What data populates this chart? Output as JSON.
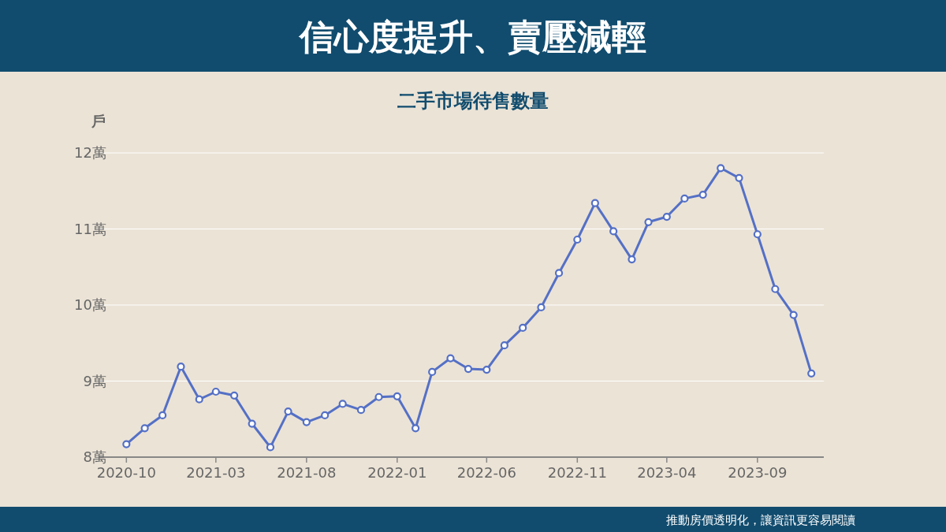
{
  "chart_data": {
    "type": "line",
    "title": "信心度提升、賣壓減輕",
    "subtitle": "二手市場待售數量",
    "ylabel": "戶",
    "annotations": [
      "推動房價透明化，讓資訊更容易閱讀"
    ],
    "x": [
      "2020-10",
      "2020-11",
      "2020-12",
      "2021-01",
      "2021-02",
      "2021-03",
      "2021-04",
      "2021-05",
      "2021-06",
      "2021-07",
      "2021-08",
      "2021-09",
      "2021-10",
      "2021-11",
      "2021-12",
      "2022-01",
      "2022-02",
      "2022-03",
      "2022-04",
      "2022-05",
      "2022-06",
      "2022-07",
      "2022-08",
      "2022-09",
      "2022-10",
      "2022-11",
      "2022-12",
      "2023-01",
      "2023-02",
      "2023-03",
      "2023-04",
      "2023-05",
      "2023-06",
      "2023-07",
      "2023-08",
      "2023-09",
      "2023-10",
      "2023-11",
      "2023-12"
    ],
    "series": [
      {
        "color": "#5470c6",
        "values": [
          8.17,
          8.38,
          8.55,
          9.19,
          8.76,
          8.86,
          8.81,
          8.44,
          8.13,
          8.6,
          8.46,
          8.55,
          8.7,
          8.62,
          8.79,
          8.8,
          8.38,
          9.12,
          9.3,
          9.16,
          9.15,
          9.47,
          9.7,
          9.97,
          10.42,
          10.86,
          11.34,
          10.97,
          10.6,
          11.09,
          11.16,
          11.4,
          11.45,
          11.8,
          11.67,
          10.93,
          10.21,
          9.87,
          9.1
        ]
      }
    ],
    "xlim": [
      "2020-08-15",
      "2023-12-22"
    ],
    "xticks": [
      {
        "value": "2020-10",
        "label": "2020-10"
      },
      {
        "value": "2021-03",
        "label": "2021-03"
      },
      {
        "value": "2021-08",
        "label": "2021-08"
      },
      {
        "value": "2022-01",
        "label": "2022-01"
      },
      {
        "value": "2022-06",
        "label": "2022-06"
      },
      {
        "value": "2022-11",
        "label": "2022-11"
      },
      {
        "value": "2023-04",
        "label": "2023-04"
      },
      {
        "value": "2023-09",
        "label": "2023-09"
      }
    ],
    "ylim": [
      8,
      12
    ],
    "yticks": [
      {
        "value": 8,
        "label": "8萬"
      },
      {
        "value": 9,
        "label": "9萬"
      },
      {
        "value": 10,
        "label": "10萬"
      },
      {
        "value": 11,
        "label": "11萬"
      },
      {
        "value": 12,
        "label": "12萬"
      }
    ],
    "grid": "y",
    "marker": "circle",
    "line_style": "solid"
  }
}
